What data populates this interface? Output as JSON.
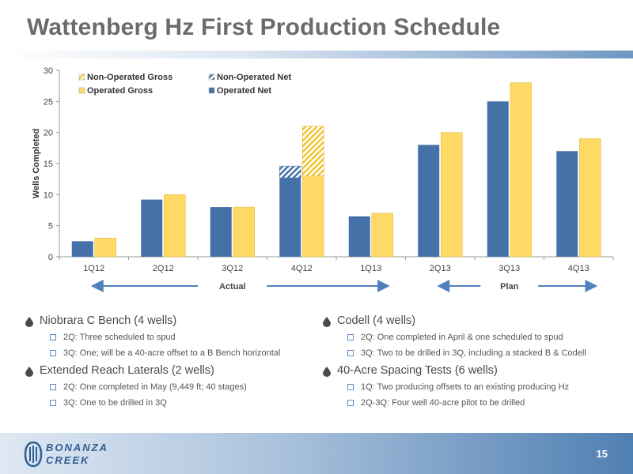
{
  "title": "Wattenberg Hz First Production Schedule",
  "chart_data": {
    "type": "bar",
    "ylabel": "Wells Completed",
    "ylim": [
      0,
      30
    ],
    "yticks": [
      0,
      5,
      10,
      15,
      20,
      25,
      30
    ],
    "categories": [
      "1Q12",
      "2Q12",
      "3Q12",
      "4Q12",
      "1Q13",
      "2Q13",
      "3Q13",
      "4Q13"
    ],
    "legend": {
      "placement": "top-left",
      "entries": [
        "Non-Operated Gross",
        "Non-Operated Net",
        "Operated Gross",
        "Operated Net"
      ]
    },
    "series": [
      {
        "name": "Operated Net",
        "values": [
          2.5,
          9.2,
          8,
          12.7,
          6.5,
          18,
          25,
          17
        ],
        "color": "#4472a8"
      },
      {
        "name": "Non-Operated Net",
        "values": [
          0,
          0,
          0,
          1.9,
          0,
          0,
          0,
          0
        ],
        "color": "#4472a8",
        "stacked_on": "Operated Net",
        "pattern": "hatch"
      },
      {
        "name": "Operated Gross",
        "values": [
          3,
          10,
          8,
          13,
          7,
          20,
          28,
          19
        ],
        "color": "#ffd966"
      },
      {
        "name": "Non-Operated Gross",
        "values": [
          0,
          0,
          0,
          8,
          0,
          0,
          0,
          0
        ],
        "color": "#ffd966",
        "stacked_on": "Operated Gross",
        "pattern": "hatch"
      }
    ],
    "sections": [
      {
        "label": "Actual",
        "from": "1Q12",
        "to": "1Q13"
      },
      {
        "label": "Plan",
        "from": "2Q13",
        "to": "4Q13"
      }
    ]
  },
  "bullets_left": [
    {
      "head": "Niobrara C Bench (4 wells)",
      "subs": [
        "2Q: Three scheduled to spud",
        "3Q: One; will be a 40-acre offset to a B Bench horizontal"
      ]
    },
    {
      "head": "Extended Reach Laterals (2 wells)",
      "subs": [
        "2Q: One completed in May (9,449 ft; 40 stages)",
        "3Q: One to be drilled in 3Q"
      ]
    }
  ],
  "bullets_right": [
    {
      "head": "Codell (4 wells)",
      "subs": [
        "2Q: One completed in April & one scheduled to spud",
        "3Q: Two to be drilled in 3Q, including a stacked B & Codell"
      ]
    },
    {
      "head": "40-Acre Spacing Tests (6 wells)",
      "subs": [
        "1Q: Two producing offsets to an existing producing Hz",
        "2Q-3Q: Four well 40-acre pilot to be drilled"
      ]
    }
  ],
  "footer": {
    "logo_line1": "BONANZA",
    "logo_line2": "CREEK",
    "page_number": "15"
  },
  "colors": {
    "operated_net": "#4472a8",
    "operated_gross": "#ffd966",
    "arrow": "#4f81bd",
    "title": "#6b6b6b"
  },
  "icons": {
    "bullet": "drop-icon",
    "sub_bullet": "square-icon"
  }
}
